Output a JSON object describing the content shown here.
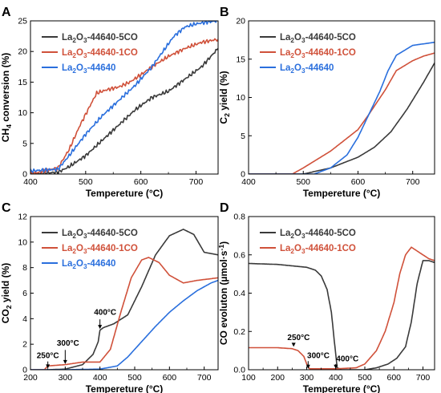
{
  "colors": {
    "black": "#3a3a3a",
    "red": "#d0513a",
    "blue": "#2a6fdd"
  },
  "chart_data": [
    {
      "type": "line",
      "panel_label": "A",
      "xlabel": "Tempereture (°C)",
      "ylabel": "CH4 conversion (%)",
      "xlim": [
        400,
        740
      ],
      "ylim": [
        0,
        25
      ],
      "xticks": [
        400,
        500,
        600,
        700
      ],
      "yticks": [
        0,
        5,
        10,
        15,
        20,
        25
      ],
      "legend": "top-left",
      "series": [
        {
          "name": "La2O3-44640-5CO",
          "color_key": "black",
          "x": [
            400,
            450,
            470,
            500,
            530,
            560,
            590,
            620,
            650,
            680,
            710,
            740
          ],
          "y": [
            0,
            0.3,
            1.2,
            3,
            5.5,
            8,
            10.5,
            12.5,
            13.5,
            15.5,
            17.5,
            20.5
          ]
        },
        {
          "name": "La2O3-44640-1CO",
          "color_key": "red",
          "x": [
            400,
            450,
            470,
            490,
            510,
            520,
            540,
            560,
            580,
            600,
            620,
            650,
            680,
            710,
            740
          ],
          "y": [
            0,
            1,
            4,
            8,
            11.5,
            13.2,
            13.8,
            14.2,
            15,
            16.2,
            17.5,
            19.2,
            20.5,
            21.5,
            22
          ]
        },
        {
          "name": "La2O3-44640",
          "color_key": "blue",
          "x": [
            400,
            450,
            470,
            500,
            530,
            560,
            590,
            620,
            640,
            660,
            680,
            700,
            720,
            740
          ],
          "y": [
            0.5,
            0.8,
            3,
            6.5,
            9.5,
            12,
            14.5,
            17.5,
            20,
            22.5,
            24,
            24.5,
            24.8,
            25
          ]
        }
      ]
    },
    {
      "type": "line",
      "panel_label": "B",
      "xlabel": "Tempereture (°C)",
      "ylabel": "C2 yield (%)",
      "xlim": [
        400,
        740
      ],
      "ylim": [
        0,
        20
      ],
      "xticks": [
        400,
        500,
        600,
        700
      ],
      "yticks": [
        0,
        5,
        10,
        15,
        20
      ],
      "legend": "top-left",
      "series": [
        {
          "name": "La2O3-44640-5CO",
          "color_key": "black",
          "x": [
            400,
            500,
            550,
            600,
            630,
            660,
            690,
            720,
            740
          ],
          "y": [
            0,
            0,
            0.8,
            2.2,
            3.5,
            5.5,
            8.5,
            12,
            14.5
          ]
        },
        {
          "name": "La2O3-44640-1CO",
          "color_key": "red",
          "x": [
            400,
            480,
            500,
            550,
            600,
            620,
            650,
            670,
            700,
            720,
            740
          ],
          "y": [
            0,
            0,
            0.8,
            3,
            5.8,
            7.8,
            11,
            13.5,
            14.8,
            15.4,
            15.8
          ]
        },
        {
          "name": "La2O3-44640",
          "color_key": "blue",
          "x": [
            400,
            520,
            550,
            580,
            600,
            620,
            640,
            655,
            670,
            700,
            740
          ],
          "y": [
            0,
            0,
            0.8,
            2.5,
            4.8,
            7.8,
            10.8,
            13.5,
            15.5,
            16.8,
            17.2
          ]
        }
      ]
    },
    {
      "type": "line",
      "panel_label": "C",
      "xlabel": "Tempereture (°C)",
      "ylabel": "CO2 yield (%)",
      "xlim": [
        200,
        740
      ],
      "ylim": [
        0,
        12
      ],
      "xticks": [
        200,
        300,
        400,
        500,
        600,
        700
      ],
      "yticks": [
        0,
        2,
        4,
        6,
        8,
        10,
        12
      ],
      "legend": "top-left",
      "series": [
        {
          "name": "La2O3-44640-5CO",
          "color_key": "black",
          "x": [
            200,
            250,
            300,
            350,
            380,
            395,
            400,
            410,
            440,
            480,
            520,
            560,
            600,
            640,
            670,
            700,
            740
          ],
          "y": [
            0,
            0,
            0.05,
            0.4,
            1.2,
            2.2,
            3.1,
            3.3,
            3.6,
            4.3,
            6.5,
            9,
            10.5,
            11,
            10.6,
            9.2,
            9
          ]
        },
        {
          "name": "La2O3-44640-1CO",
          "color_key": "red",
          "x": [
            200,
            240,
            250,
            300,
            350,
            400,
            430,
            460,
            490,
            520,
            540,
            570,
            600,
            640,
            680,
            740
          ],
          "y": [
            0,
            0,
            0.3,
            0.4,
            0.6,
            0.6,
            1.6,
            4.5,
            7.2,
            8.6,
            8.8,
            8.4,
            7.4,
            6.8,
            7,
            7.2
          ]
        },
        {
          "name": "La2O3-44640",
          "color_key": "blue",
          "x": [
            200,
            300,
            400,
            450,
            480,
            520,
            560,
            600,
            640,
            680,
            720,
            740
          ],
          "y": [
            0,
            0,
            0.05,
            0.3,
            1,
            2.2,
            3.4,
            4.5,
            5.4,
            6.2,
            6.8,
            7
          ]
        }
      ],
      "annotations": [
        "250°C",
        "300°C",
        "400°C"
      ]
    },
    {
      "type": "line",
      "panel_label": "D",
      "xlabel": "Tempereture (°C)",
      "ylabel": "CO evoluton (µmol·s⁻¹)",
      "xlim": [
        100,
        740
      ],
      "ylim": [
        0,
        0.8
      ],
      "xticks": [
        100,
        200,
        300,
        400,
        500,
        600,
        700
      ],
      "yticks": [
        0.0,
        0.2,
        0.4,
        0.6,
        0.8
      ],
      "legend": "top-left",
      "series": [
        {
          "name": "La2O3-44640-5CO",
          "color_key": "black",
          "x": [
            100,
            200,
            300,
            330,
            350,
            370,
            385,
            395,
            405,
            420,
            500,
            540,
            580,
            610,
            640,
            660,
            680,
            700,
            720,
            740
          ],
          "y": [
            0.555,
            0.55,
            0.535,
            0.52,
            0.49,
            0.42,
            0.3,
            0.15,
            0.01,
            0,
            0,
            0.01,
            0.03,
            0.06,
            0.12,
            0.25,
            0.45,
            0.57,
            0.57,
            0.56
          ]
        },
        {
          "name": "La2O3-44640-1CO",
          "color_key": "red",
          "x": [
            100,
            200,
            250,
            270,
            290,
            300,
            310,
            400,
            470,
            500,
            540,
            570,
            600,
            620,
            640,
            660,
            680,
            700,
            720,
            740
          ],
          "y": [
            0.115,
            0.115,
            0.11,
            0.1,
            0.07,
            0.03,
            0.005,
            0.005,
            0.01,
            0.03,
            0.1,
            0.2,
            0.35,
            0.5,
            0.6,
            0.64,
            0.62,
            0.6,
            0.58,
            0.57
          ]
        }
      ],
      "annotations": [
        "250°C",
        "300°C",
        "400°C"
      ]
    }
  ]
}
